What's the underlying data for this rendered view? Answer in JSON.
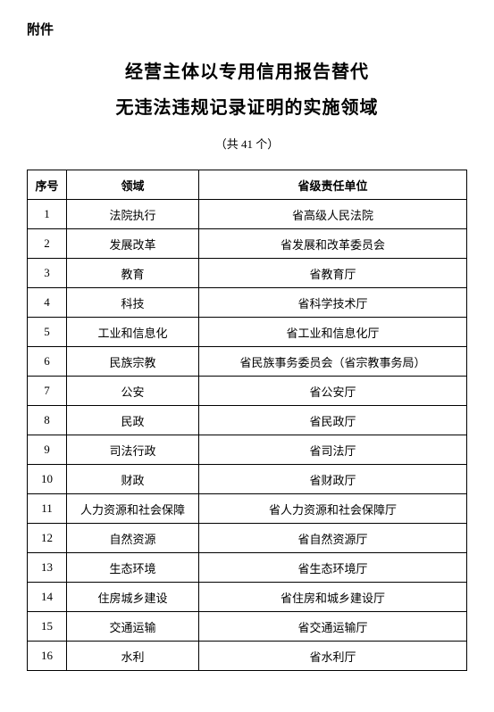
{
  "attachment_label": "附件",
  "title_line1": "经营主体以专用信用报告替代",
  "title_line2": "无违法违规记录证明的实施领域",
  "subtitle": "（共 41 个）",
  "table": {
    "headers": {
      "index": "序号",
      "field": "领域",
      "unit": "省级责任单位"
    },
    "rows": [
      {
        "index": "1",
        "field": "法院执行",
        "unit": "省高级人民法院"
      },
      {
        "index": "2",
        "field": "发展改革",
        "unit": "省发展和改革委员会"
      },
      {
        "index": "3",
        "field": "教育",
        "unit": "省教育厅"
      },
      {
        "index": "4",
        "field": "科技",
        "unit": "省科学技术厅"
      },
      {
        "index": "5",
        "field": "工业和信息化",
        "unit": "省工业和信息化厅"
      },
      {
        "index": "6",
        "field": "民族宗教",
        "unit": "省民族事务委员会（省宗教事务局）"
      },
      {
        "index": "7",
        "field": "公安",
        "unit": "省公安厅"
      },
      {
        "index": "8",
        "field": "民政",
        "unit": "省民政厅"
      },
      {
        "index": "9",
        "field": "司法行政",
        "unit": "省司法厅"
      },
      {
        "index": "10",
        "field": "财政",
        "unit": "省财政厅"
      },
      {
        "index": "11",
        "field": "人力资源和社会保障",
        "unit": "省人力资源和社会保障厅"
      },
      {
        "index": "12",
        "field": "自然资源",
        "unit": "省自然资源厅"
      },
      {
        "index": "13",
        "field": "生态环境",
        "unit": "省生态环境厅"
      },
      {
        "index": "14",
        "field": "住房城乡建设",
        "unit": "省住房和城乡建设厅"
      },
      {
        "index": "15",
        "field": "交通运输",
        "unit": "省交通运输厅"
      },
      {
        "index": "16",
        "field": "水利",
        "unit": "省水利厅"
      }
    ]
  }
}
